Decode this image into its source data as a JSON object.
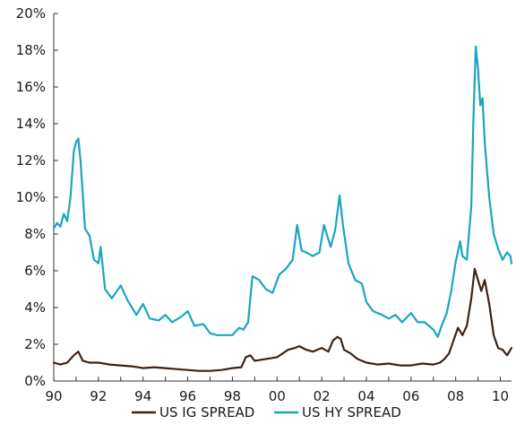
{
  "chart_data": {
    "type": "line",
    "title": "",
    "xlabel": "",
    "ylabel": "",
    "xlim": [
      1990,
      2010.5
    ],
    "ylim": [
      0,
      20
    ],
    "x_ticks": [
      1990,
      1992,
      1994,
      1996,
      1998,
      2000,
      2002,
      2004,
      2006,
      2008,
      2010
    ],
    "x_tick_labels": [
      "90",
      "92",
      "94",
      "96",
      "98",
      "00",
      "02",
      "04",
      "06",
      "08",
      "10"
    ],
    "y_ticks": [
      0,
      2,
      4,
      6,
      8,
      10,
      12,
      14,
      16,
      18,
      20
    ],
    "y_tick_labels": [
      "0%",
      "2%",
      "4%",
      "6%",
      "8%",
      "10%",
      "12%",
      "14%",
      "16%",
      "18%",
      "20%"
    ],
    "grid": false,
    "legend_position": "bottom",
    "series": [
      {
        "name": "US IG SPREAD",
        "color": "#3b2314",
        "x": [
          1990.0,
          1990.3,
          1990.6,
          1990.9,
          1991.1,
          1991.3,
          1991.6,
          1992.0,
          1992.5,
          1993.0,
          1993.5,
          1994.0,
          1994.5,
          1995.0,
          1995.5,
          1996.0,
          1996.5,
          1997.0,
          1997.5,
          1998.0,
          1998.4,
          1998.6,
          1998.8,
          1999.0,
          1999.5,
          2000.0,
          2000.5,
          2000.8,
          2001.0,
          2001.3,
          2001.6,
          2002.0,
          2002.3,
          2002.5,
          2002.7,
          2002.85,
          2003.0,
          2003.3,
          2003.6,
          2004.0,
          2004.5,
          2005.0,
          2005.5,
          2006.0,
          2006.5,
          2007.0,
          2007.3,
          2007.5,
          2007.7,
          2007.9,
          2008.1,
          2008.3,
          2008.5,
          2008.7,
          2008.85,
          2009.0,
          2009.15,
          2009.3,
          2009.5,
          2009.7,
          2009.9,
          2010.1,
          2010.3,
          2010.5
        ],
        "values": [
          1.0,
          0.9,
          1.0,
          1.4,
          1.6,
          1.1,
          1.0,
          1.0,
          0.9,
          0.85,
          0.8,
          0.7,
          0.75,
          0.7,
          0.65,
          0.6,
          0.55,
          0.55,
          0.6,
          0.7,
          0.75,
          1.3,
          1.4,
          1.1,
          1.2,
          1.3,
          1.7,
          1.8,
          1.9,
          1.7,
          1.6,
          1.8,
          1.6,
          2.2,
          2.4,
          2.3,
          1.7,
          1.5,
          1.2,
          1.0,
          0.9,
          0.95,
          0.85,
          0.85,
          0.95,
          0.9,
          1.0,
          1.2,
          1.5,
          2.2,
          2.9,
          2.5,
          3.0,
          4.5,
          6.1,
          5.5,
          4.9,
          5.5,
          4.2,
          2.5,
          1.8,
          1.7,
          1.4,
          1.8
        ]
      },
      {
        "name": "US HY SPREAD",
        "color": "#1ba4c2",
        "x": [
          1990.0,
          1990.15,
          1990.3,
          1990.45,
          1990.6,
          1990.75,
          1990.9,
          1991.0,
          1991.1,
          1991.2,
          1991.4,
          1991.6,
          1991.8,
          1992.0,
          1992.1,
          1992.3,
          1992.6,
          1993.0,
          1993.3,
          1993.7,
          1994.0,
          1994.3,
          1994.7,
          1995.0,
          1995.3,
          1995.7,
          1996.0,
          1996.3,
          1996.7,
          1997.0,
          1997.3,
          1997.7,
          1998.0,
          1998.3,
          1998.5,
          1998.7,
          1998.9,
          1999.2,
          1999.5,
          1999.8,
          2000.1,
          2000.4,
          2000.7,
          2000.9,
          2001.1,
          2001.3,
          2001.6,
          2001.9,
          2002.1,
          2002.4,
          2002.6,
          2002.8,
          2002.95,
          2003.2,
          2003.5,
          2003.8,
          2004.0,
          2004.3,
          2004.7,
          2005.0,
          2005.3,
          2005.6,
          2006.0,
          2006.3,
          2006.6,
          2007.0,
          2007.2,
          2007.4,
          2007.6,
          2007.8,
          2008.0,
          2008.2,
          2008.3,
          2008.5,
          2008.7,
          2008.8,
          2008.9,
          2009.0,
          2009.1,
          2009.2,
          2009.3,
          2009.5,
          2009.7,
          2009.9,
          2010.1,
          2010.3,
          2010.45,
          2010.5
        ],
        "values": [
          8.3,
          8.6,
          8.4,
          9.1,
          8.7,
          10.0,
          12.5,
          13.0,
          13.2,
          12.0,
          8.3,
          7.9,
          6.6,
          6.4,
          7.3,
          5.0,
          4.5,
          5.2,
          4.4,
          3.6,
          4.2,
          3.4,
          3.3,
          3.6,
          3.2,
          3.5,
          3.8,
          3.0,
          3.1,
          2.6,
          2.5,
          2.5,
          2.5,
          2.9,
          2.8,
          3.2,
          5.7,
          5.5,
          5.0,
          4.8,
          5.8,
          6.1,
          6.6,
          8.5,
          7.1,
          7.0,
          6.8,
          7.0,
          8.5,
          7.3,
          8.2,
          10.1,
          8.5,
          6.4,
          5.5,
          5.3,
          4.3,
          3.8,
          3.6,
          3.4,
          3.6,
          3.2,
          3.7,
          3.2,
          3.2,
          2.8,
          2.4,
          3.1,
          3.7,
          4.9,
          6.5,
          7.6,
          6.8,
          6.6,
          9.5,
          14.5,
          18.2,
          17.0,
          15.0,
          15.4,
          13.0,
          10.0,
          8.0,
          7.2,
          6.6,
          7.0,
          6.8,
          6.4
        ]
      }
    ]
  }
}
